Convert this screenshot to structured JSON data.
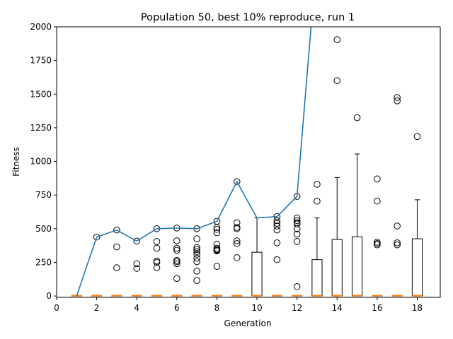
{
  "chart_data": {
    "type": "box",
    "title": "Population 50, best 10% reproduce, run 1",
    "xlabel": "Generation",
    "ylabel": "Fitness",
    "xlim": [
      0,
      19.15
    ],
    "ylim": [
      -10,
      2000
    ],
    "xticks": [
      0,
      2,
      4,
      6,
      8,
      10,
      12,
      14,
      16,
      18
    ],
    "yticks": [
      0,
      250,
      500,
      750,
      1000,
      1250,
      1500,
      1750,
      2000
    ],
    "grid": false,
    "boxes": [
      {
        "x": 1,
        "q1": 0,
        "median": 0,
        "q3": 0,
        "whisker_high": 0,
        "outliers": []
      },
      {
        "x": 2,
        "q1": 0,
        "median": 0,
        "q3": 0,
        "whisker_high": 0,
        "outliers": [
          438
        ]
      },
      {
        "x": 3,
        "q1": 0,
        "median": 0,
        "q3": 0,
        "whisker_high": 0,
        "outliers": [
          490,
          365,
          210
        ]
      },
      {
        "x": 4,
        "q1": 0,
        "median": 0,
        "q3": 0,
        "whisker_high": 0,
        "outliers": [
          408,
          240,
          205
        ]
      },
      {
        "x": 5,
        "q1": 0,
        "median": 0,
        "q3": 0,
        "whisker_high": 0,
        "outliers": [
          500,
          405,
          355,
          260,
          250,
          210
        ]
      },
      {
        "x": 6,
        "q1": 0,
        "median": 0,
        "q3": 0,
        "whisker_high": 0,
        "outliers": [
          505,
          410,
          355,
          340,
          265,
          255,
          240,
          130
        ]
      },
      {
        "x": 7,
        "q1": 0,
        "median": 0,
        "q3": 0,
        "whisker_high": 0,
        "outliers": [
          500,
          425,
          360,
          345,
          330,
          310,
          280,
          255,
          185,
          115
        ]
      },
      {
        "x": 8,
        "q1": 0,
        "median": 0,
        "q3": 0,
        "whisker_high": 0,
        "outliers": [
          555,
          510,
          495,
          470,
          385,
          355,
          345,
          340,
          335,
          220
        ]
      },
      {
        "x": 9,
        "q1": 0,
        "median": 0,
        "q3": 0,
        "whisker_high": 0,
        "outliers": [
          850,
          545,
          510,
          500,
          410,
          390,
          285
        ]
      },
      {
        "x": 10,
        "q1": 0,
        "median": 0,
        "q3": 325,
        "whisker_high": 580,
        "outliers": []
      },
      {
        "x": 11,
        "q1": 0,
        "median": 0,
        "q3": 0,
        "whisker_high": 0,
        "outliers": [
          590,
          560,
          540,
          520,
          490,
          395,
          270
        ]
      },
      {
        "x": 12,
        "q1": 0,
        "median": 0,
        "q3": 0,
        "whisker_high": 0,
        "outliers": [
          740,
          580,
          560,
          545,
          535,
          500,
          460,
          405,
          70
        ]
      },
      {
        "x": 13,
        "q1": 0,
        "median": 0,
        "q3": 270,
        "whisker_high": 580,
        "outliers": [
          830,
          705
        ]
      },
      {
        "x": 14,
        "q1": 0,
        "median": 0,
        "q3": 420,
        "whisker_high": 880,
        "outliers": [
          1905,
          1600
        ]
      },
      {
        "x": 15,
        "q1": 0,
        "median": 0,
        "q3": 440,
        "whisker_high": 1055,
        "outliers": [
          1325
        ]
      },
      {
        "x": 16,
        "q1": 0,
        "median": 0,
        "q3": 0,
        "whisker_high": 0,
        "outliers": [
          870,
          705,
          400,
          390,
          380
        ]
      },
      {
        "x": 17,
        "q1": 0,
        "median": 0,
        "q3": 0,
        "whisker_high": 0,
        "outliers": [
          1475,
          1450,
          520,
          395,
          380
        ]
      },
      {
        "x": 18,
        "q1": 0,
        "median": 0,
        "q3": 425,
        "whisker_high": 715,
        "outliers": [
          1185
        ]
      }
    ],
    "best_line": {
      "x": [
        1,
        2,
        3,
        4,
        5,
        6,
        7,
        8,
        9,
        10,
        11,
        12,
        12.7
      ],
      "y": [
        0,
        438,
        490,
        408,
        500,
        505,
        500,
        555,
        850,
        580,
        590,
        740,
        2000
      ]
    },
    "colors": {
      "line": "#1f77b4",
      "median": "#ff7f0e",
      "box": "#000000",
      "outlier": "#000000"
    }
  }
}
